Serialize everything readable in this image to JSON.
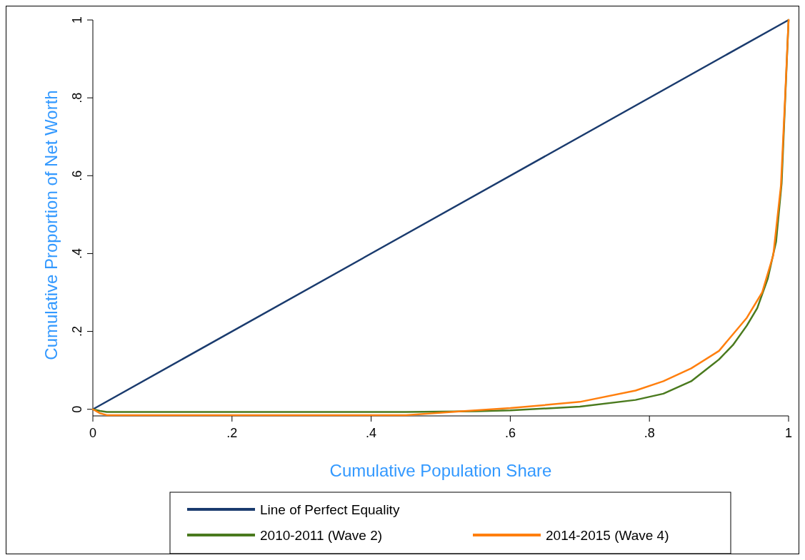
{
  "chart_data": {
    "type": "line",
    "xlabel": "Cumulative Population Share",
    "ylabel": "Cumulative Proportion of Net Worth",
    "xlim": [
      0,
      1
    ],
    "ylim": [
      -0.017,
      1
    ],
    "xticks": [
      {
        "value": 0,
        "label": "0"
      },
      {
        "value": 0.2,
        "label": ".2"
      },
      {
        "value": 0.4,
        "label": ".4"
      },
      {
        "value": 0.6,
        "label": ".6"
      },
      {
        "value": 0.8,
        "label": ".8"
      },
      {
        "value": 1,
        "label": "1"
      }
    ],
    "yticks": [
      {
        "value": 0,
        "label": "0"
      },
      {
        "value": 0.2,
        "label": ".2"
      },
      {
        "value": 0.4,
        "label": ".4"
      },
      {
        "value": 0.6,
        "label": ".6"
      },
      {
        "value": 0.8,
        "label": ".8"
      },
      {
        "value": 1,
        "label": "1"
      }
    ],
    "grid": false,
    "legend": "bottom",
    "marker": "none",
    "line_style": "solid",
    "series": [
      {
        "name": "Line of Perfect Equality",
        "color": "#1a3b6e",
        "x": [
          0,
          1
        ],
        "values": [
          0,
          1
        ]
      },
      {
        "name": "2010-2011 (Wave 2)",
        "color": "#4a7a1e",
        "x": [
          0,
          0.01,
          0.02,
          0.45,
          0.55,
          0.6,
          0.7,
          0.78,
          0.82,
          0.86,
          0.9,
          0.92,
          0.94,
          0.955,
          0.97,
          0.982,
          0.99,
          1
        ],
        "values": [
          0,
          -0.004,
          -0.007,
          -0.007,
          -0.005,
          -0.003,
          0.007,
          0.024,
          0.04,
          0.072,
          0.128,
          0.165,
          0.215,
          0.26,
          0.335,
          0.43,
          0.58,
          1
        ]
      },
      {
        "name": "2014-2015 (Wave 4)",
        "color": "#ff7f0e",
        "x": [
          0,
          0.01,
          0.02,
          0.45,
          0.53,
          0.6,
          0.7,
          0.78,
          0.82,
          0.86,
          0.9,
          0.94,
          0.962,
          0.978,
          0.989,
          0.995,
          1
        ],
        "values": [
          0,
          -0.01,
          -0.015,
          -0.015,
          -0.005,
          0.003,
          0.019,
          0.048,
          0.072,
          0.105,
          0.15,
          0.235,
          0.3,
          0.396,
          0.574,
          0.8,
          1
        ]
      }
    ]
  }
}
